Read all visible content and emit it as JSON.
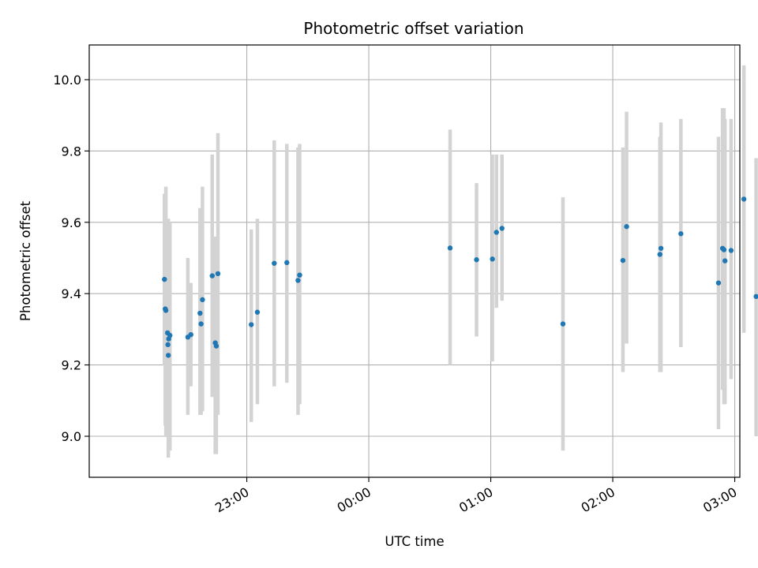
{
  "chart_data": {
    "type": "scatter",
    "title": "Photometric offset variation",
    "xlabel": "UTC time",
    "ylabel": "Photometric offset",
    "x_unit": "minutes relative to 00:00 UTC",
    "xlim": [
      -137.5,
      182.5
    ],
    "ylim": [
      8.885,
      10.1
    ],
    "grid": true,
    "legend": "none",
    "colors": {
      "point": "#1f77b4",
      "errorbar": "#d3d3d3",
      "grid": "#b0b0b0"
    },
    "x_ticks": [
      {
        "t": -60,
        "label": "23:00"
      },
      {
        "t": 0,
        "label": "00:00"
      },
      {
        "t": 60,
        "label": "01:00"
      },
      {
        "t": 120,
        "label": "02:00"
      },
      {
        "t": 180,
        "label": "03:00"
      }
    ],
    "y_ticks": [
      {
        "v": 9.0,
        "label": "9.0"
      },
      {
        "v": 9.2,
        "label": "9.2"
      },
      {
        "v": 9.4,
        "label": "9.4"
      },
      {
        "v": 9.6,
        "label": "9.6"
      },
      {
        "v": 9.8,
        "label": "9.8"
      },
      {
        "v": 10.0,
        "label": "10.0"
      }
    ],
    "points": [
      {
        "t": -100.5,
        "y": 9.44,
        "lo": 9.2,
        "hi": 9.68
      },
      {
        "t": -100.1,
        "y": 9.357,
        "lo": 9.03,
        "hi": 9.66
      },
      {
        "t": -99.8,
        "y": 9.353,
        "lo": 9.0,
        "hi": 9.7
      },
      {
        "t": -99.0,
        "y": 9.29,
        "lo": 9.0,
        "hi": 9.58
      },
      {
        "t": -98.8,
        "y": 9.257,
        "lo": 9.0,
        "hi": 9.51
      },
      {
        "t": -98.6,
        "y": 9.227,
        "lo": 8.94,
        "hi": 9.61
      },
      {
        "t": -98.4,
        "y": 9.273,
        "lo": 8.96,
        "hi": 9.59
      },
      {
        "t": -97.8,
        "y": 9.283,
        "lo": 8.96,
        "hi": 9.6
      },
      {
        "t": -89.0,
        "y": 9.278,
        "lo": 9.06,
        "hi": 9.5
      },
      {
        "t": -87.5,
        "y": 9.285,
        "lo": 9.14,
        "hi": 9.43
      },
      {
        "t": -83.0,
        "y": 9.345,
        "lo": 9.06,
        "hi": 9.64
      },
      {
        "t": -82.5,
        "y": 9.315,
        "lo": 9.06,
        "hi": 9.57
      },
      {
        "t": -81.8,
        "y": 9.383,
        "lo": 9.07,
        "hi": 9.7
      },
      {
        "t": -77.0,
        "y": 9.45,
        "lo": 9.11,
        "hi": 9.79
      },
      {
        "t": -75.5,
        "y": 9.262,
        "lo": 8.95,
        "hi": 9.56
      },
      {
        "t": -75.0,
        "y": 9.253,
        "lo": 8.95,
        "hi": 9.56
      },
      {
        "t": -74.2,
        "y": 9.456,
        "lo": 9.06,
        "hi": 9.85
      },
      {
        "t": -57.8,
        "y": 9.313,
        "lo": 9.04,
        "hi": 9.58
      },
      {
        "t": -54.8,
        "y": 9.348,
        "lo": 9.09,
        "hi": 9.61
      },
      {
        "t": -46.5,
        "y": 9.485,
        "lo": 9.14,
        "hi": 9.83
      },
      {
        "t": -40.3,
        "y": 9.487,
        "lo": 9.15,
        "hi": 9.82
      },
      {
        "t": -34.8,
        "y": 9.437,
        "lo": 9.06,
        "hi": 9.81
      },
      {
        "t": -34.0,
        "y": 9.452,
        "lo": 9.09,
        "hi": 9.82
      },
      {
        "t": 40.0,
        "y": 9.528,
        "lo": 9.2,
        "hi": 9.86
      },
      {
        "t": 53.0,
        "y": 9.495,
        "lo": 9.28,
        "hi": 9.71
      },
      {
        "t": 60.8,
        "y": 9.497,
        "lo": 9.21,
        "hi": 9.79
      },
      {
        "t": 62.8,
        "y": 9.572,
        "lo": 9.36,
        "hi": 9.79
      },
      {
        "t": 65.5,
        "y": 9.583,
        "lo": 9.38,
        "hi": 9.79
      },
      {
        "t": 95.5,
        "y": 9.315,
        "lo": 8.96,
        "hi": 9.67
      },
      {
        "t": 125.0,
        "y": 9.493,
        "lo": 9.18,
        "hi": 9.81
      },
      {
        "t": 126.8,
        "y": 9.588,
        "lo": 9.26,
        "hi": 9.91
      },
      {
        "t": 143.2,
        "y": 9.51,
        "lo": 9.18,
        "hi": 9.84
      },
      {
        "t": 143.7,
        "y": 9.527,
        "lo": 9.18,
        "hi": 9.88
      },
      {
        "t": 153.5,
        "y": 9.568,
        "lo": 9.25,
        "hi": 9.89
      },
      {
        "t": 172.0,
        "y": 9.43,
        "lo": 9.02,
        "hi": 9.84
      },
      {
        "t": 174.0,
        "y": 9.527,
        "lo": 9.13,
        "hi": 9.92
      },
      {
        "t": 174.7,
        "y": 9.523,
        "lo": 9.09,
        "hi": 9.92
      },
      {
        "t": 175.2,
        "y": 9.492,
        "lo": 9.09,
        "hi": 9.89
      },
      {
        "t": 178.2,
        "y": 9.521,
        "lo": 9.16,
        "hi": 9.89
      },
      {
        "t": 184.5,
        "y": 9.665,
        "lo": 9.29,
        "hi": 10.04
      },
      {
        "t": 190.5,
        "y": 9.392,
        "lo": 9.0,
        "hi": 9.78
      }
    ]
  }
}
